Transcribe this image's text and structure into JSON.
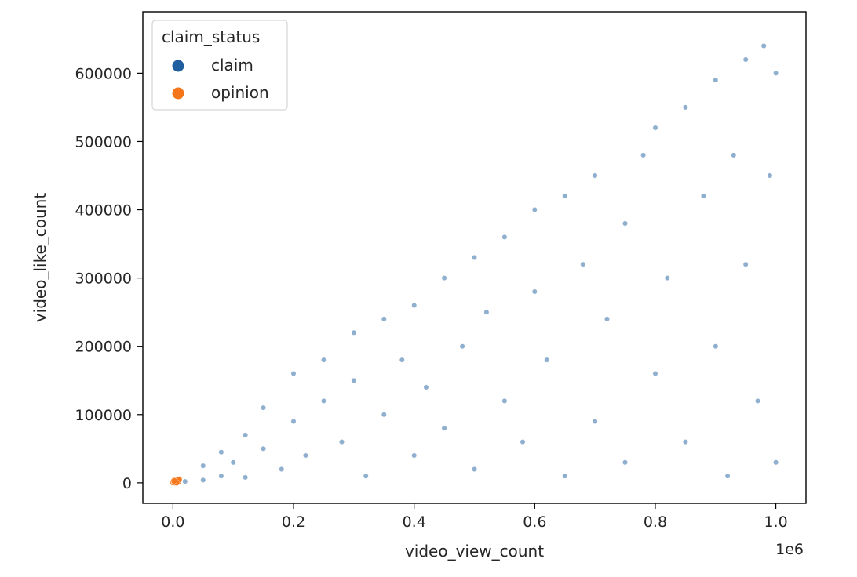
{
  "chart_data": {
    "type": "scatter",
    "title": "",
    "xlabel": "video_view_count",
    "ylabel": "video_like_count",
    "x_offset_label": "1e6",
    "xlim": [
      -0.05,
      1.05
    ],
    "ylim": [
      -30000,
      690000
    ],
    "x_ticks": [
      0.0,
      0.2,
      0.4,
      0.6,
      0.8,
      1.0
    ],
    "x_tick_labels": [
      "0.0",
      "0.2",
      "0.4",
      "0.6",
      "0.8",
      "1.0"
    ],
    "y_ticks": [
      0,
      100000,
      200000,
      300000,
      400000,
      500000,
      600000
    ],
    "y_tick_labels": [
      "0",
      "100000",
      "200000",
      "300000",
      "400000",
      "500000",
      "600000"
    ],
    "grid": false,
    "legend": {
      "title": "claim_status",
      "placement": "top-left",
      "entries": [
        "claim",
        "opinion"
      ]
    },
    "series": [
      {
        "name": "claim",
        "color": "#1f5fa0",
        "points": [
          [
            0.02,
            2000
          ],
          [
            0.05,
            4000
          ],
          [
            0.05,
            25000
          ],
          [
            0.08,
            10000
          ],
          [
            0.08,
            45000
          ],
          [
            0.1,
            30000
          ],
          [
            0.12,
            8000
          ],
          [
            0.12,
            70000
          ],
          [
            0.15,
            50000
          ],
          [
            0.15,
            110000
          ],
          [
            0.18,
            20000
          ],
          [
            0.2,
            90000
          ],
          [
            0.2,
            160000
          ],
          [
            0.22,
            40000
          ],
          [
            0.25,
            120000
          ],
          [
            0.25,
            180000
          ],
          [
            0.28,
            60000
          ],
          [
            0.3,
            150000
          ],
          [
            0.3,
            220000
          ],
          [
            0.32,
            10000
          ],
          [
            0.35,
            100000
          ],
          [
            0.35,
            240000
          ],
          [
            0.38,
            180000
          ],
          [
            0.4,
            40000
          ],
          [
            0.4,
            260000
          ],
          [
            0.42,
            140000
          ],
          [
            0.45,
            80000
          ],
          [
            0.45,
            300000
          ],
          [
            0.48,
            200000
          ],
          [
            0.5,
            20000
          ],
          [
            0.5,
            330000
          ],
          [
            0.52,
            250000
          ],
          [
            0.55,
            120000
          ],
          [
            0.55,
            360000
          ],
          [
            0.58,
            60000
          ],
          [
            0.6,
            280000
          ],
          [
            0.6,
            400000
          ],
          [
            0.62,
            180000
          ],
          [
            0.65,
            10000
          ],
          [
            0.65,
            420000
          ],
          [
            0.68,
            320000
          ],
          [
            0.7,
            90000
          ],
          [
            0.7,
            450000
          ],
          [
            0.72,
            240000
          ],
          [
            0.75,
            380000
          ],
          [
            0.75,
            30000
          ],
          [
            0.78,
            480000
          ],
          [
            0.8,
            160000
          ],
          [
            0.8,
            520000
          ],
          [
            0.82,
            300000
          ],
          [
            0.85,
            60000
          ],
          [
            0.85,
            550000
          ],
          [
            0.88,
            420000
          ],
          [
            0.9,
            200000
          ],
          [
            0.9,
            590000
          ],
          [
            0.92,
            10000
          ],
          [
            0.93,
            480000
          ],
          [
            0.95,
            620000
          ],
          [
            0.95,
            320000
          ],
          [
            0.97,
            120000
          ],
          [
            0.98,
            640000
          ],
          [
            0.99,
            450000
          ],
          [
            1.0,
            30000
          ],
          [
            1.0,
            600000
          ]
        ]
      },
      {
        "name": "opinion",
        "color": "#f5761a",
        "points": [
          [
            0.0,
            500
          ],
          [
            0.002,
            1500
          ],
          [
            0.003,
            300
          ],
          [
            0.004,
            2500
          ],
          [
            0.005,
            1000
          ],
          [
            0.006,
            3500
          ],
          [
            0.007,
            800
          ],
          [
            0.008,
            4200
          ],
          [
            0.009,
            2000
          ],
          [
            0.01,
            5000
          ],
          [
            0.006,
            200
          ],
          [
            0.002,
            3000
          ]
        ]
      }
    ]
  }
}
